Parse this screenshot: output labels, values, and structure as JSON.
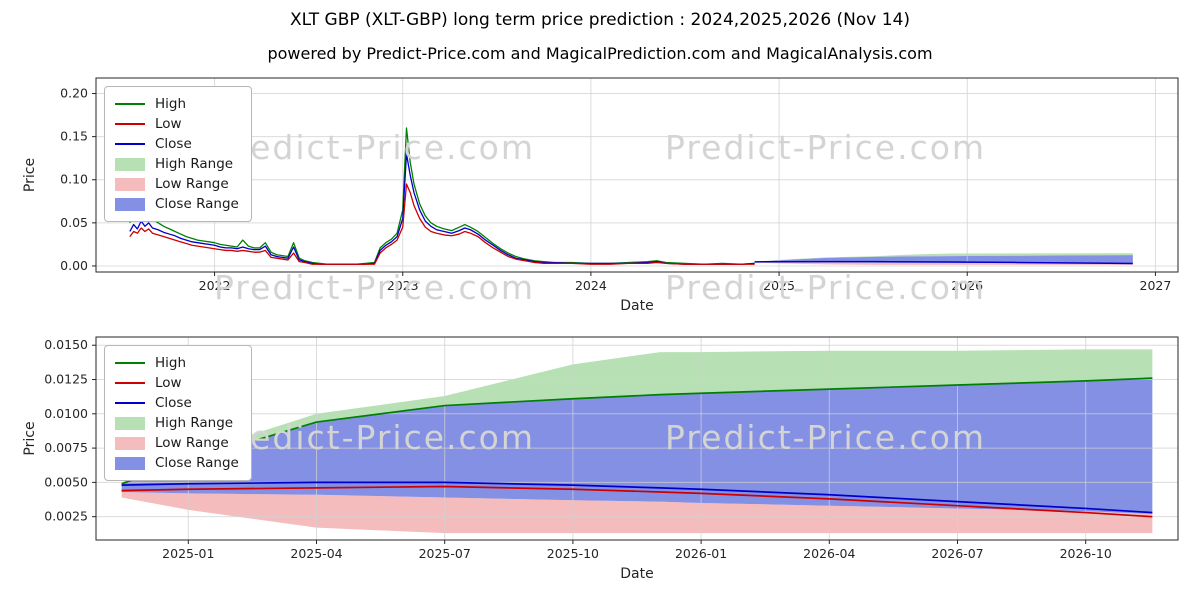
{
  "header": {
    "title": "XLT GBP (XLT-GBP) long term price prediction : 2024,2025,2026 (Nov 14)",
    "subtitle": "powered by Predict-Price.com and MagicalPrediction.com and MagicalAnalysis.com"
  },
  "watermark": {
    "text": "Predict-Price.com"
  },
  "colors": {
    "high": "#008000",
    "low": "#cc0000",
    "close": "#0000cd",
    "high_range": "#b7e0b4",
    "low_range": "#f5bcbe",
    "close_range": "#8390e4",
    "grid": "#d0d0d0",
    "spine": "#262626",
    "text": "#262626"
  },
  "legend": {
    "items": [
      {
        "label": "High",
        "swatch": "line",
        "color": "high"
      },
      {
        "label": "Low",
        "swatch": "line",
        "color": "low"
      },
      {
        "label": "Close",
        "swatch": "line",
        "color": "close"
      },
      {
        "label": "High Range",
        "swatch": "patch",
        "color": "high_range"
      },
      {
        "label": "Low Range",
        "swatch": "patch",
        "color": "low_range"
      },
      {
        "label": "Close Range",
        "swatch": "patch",
        "color": "close_range"
      }
    ]
  },
  "chart_data": [
    {
      "type": "line",
      "name": "price-history",
      "xlabel": "Date",
      "ylabel": "Price",
      "grid": true,
      "legend_position": "upper left",
      "xlim": [
        2021.37,
        2027.12
      ],
      "ylim": [
        -0.007,
        0.218
      ],
      "x_ticks": [
        {
          "v": 2022,
          "label": "2022"
        },
        {
          "v": 2023,
          "label": "2023"
        },
        {
          "v": 2024,
          "label": "2024"
        },
        {
          "v": 2025,
          "label": "2025"
        },
        {
          "v": 2026,
          "label": "2026"
        },
        {
          "v": 2027,
          "label": "2027"
        }
      ],
      "y_ticks": [
        {
          "v": 0.0,
          "label": "0.00"
        },
        {
          "v": 0.05,
          "label": "0.05"
        },
        {
          "v": 0.1,
          "label": "0.10"
        },
        {
          "v": 0.15,
          "label": "0.15"
        },
        {
          "v": 0.2,
          "label": "0.20"
        }
      ],
      "x": [
        2021.55,
        2021.57,
        2021.59,
        2021.61,
        2021.63,
        2021.65,
        2021.67,
        2021.7,
        2021.73,
        2021.76,
        2021.79,
        2021.82,
        2021.85,
        2021.88,
        2021.91,
        2021.94,
        2021.97,
        2022.0,
        2022.03,
        2022.06,
        2022.09,
        2022.12,
        2022.15,
        2022.18,
        2022.21,
        2022.24,
        2022.27,
        2022.3,
        2022.33,
        2022.36,
        2022.39,
        2022.42,
        2022.45,
        2022.48,
        2022.52,
        2022.56,
        2022.6,
        2022.65,
        2022.7,
        2022.75,
        2022.8,
        2022.85,
        2022.88,
        2022.91,
        2022.94,
        2022.97,
        2023.0,
        2023.02,
        2023.04,
        2023.06,
        2023.09,
        2023.12,
        2023.15,
        2023.18,
        2023.22,
        2023.26,
        2023.3,
        2023.33,
        2023.36,
        2023.4,
        2023.44,
        2023.48,
        2023.52,
        2023.56,
        2023.6,
        2023.65,
        2023.7,
        2023.75,
        2023.8,
        2023.9,
        2024.0,
        2024.1,
        2024.2,
        2024.3,
        2024.35,
        2024.4,
        2024.5,
        2024.6,
        2024.7,
        2024.8,
        2024.87
      ],
      "high": [
        0.05,
        0.072,
        0.055,
        0.075,
        0.058,
        0.074,
        0.054,
        0.05,
        0.046,
        0.043,
        0.04,
        0.037,
        0.034,
        0.032,
        0.03,
        0.029,
        0.028,
        0.027,
        0.025,
        0.024,
        0.023,
        0.022,
        0.03,
        0.023,
        0.021,
        0.021,
        0.027,
        0.016,
        0.013,
        0.012,
        0.011,
        0.027,
        0.009,
        0.006,
        0.004,
        0.003,
        0.002,
        0.002,
        0.002,
        0.002,
        0.003,
        0.004,
        0.021,
        0.027,
        0.031,
        0.038,
        0.065,
        0.16,
        0.12,
        0.095,
        0.072,
        0.058,
        0.05,
        0.046,
        0.043,
        0.041,
        0.045,
        0.048,
        0.045,
        0.04,
        0.033,
        0.026,
        0.02,
        0.015,
        0.011,
        0.008,
        0.006,
        0.005,
        0.004,
        0.004,
        0.003,
        0.003,
        0.004,
        0.005,
        0.006,
        0.004,
        0.003,
        0.002,
        0.003,
        0.002,
        0.003
      ],
      "close": [
        0.04,
        0.048,
        0.043,
        0.052,
        0.046,
        0.05,
        0.044,
        0.042,
        0.039,
        0.037,
        0.035,
        0.032,
        0.03,
        0.028,
        0.027,
        0.026,
        0.025,
        0.024,
        0.022,
        0.021,
        0.021,
        0.02,
        0.022,
        0.02,
        0.019,
        0.019,
        0.023,
        0.013,
        0.011,
        0.01,
        0.009,
        0.022,
        0.007,
        0.005,
        0.003,
        0.002,
        0.002,
        0.002,
        0.002,
        0.002,
        0.002,
        0.003,
        0.018,
        0.024,
        0.028,
        0.034,
        0.055,
        0.13,
        0.105,
        0.085,
        0.065,
        0.052,
        0.046,
        0.042,
        0.04,
        0.038,
        0.041,
        0.044,
        0.042,
        0.037,
        0.03,
        0.024,
        0.018,
        0.013,
        0.009,
        0.007,
        0.005,
        0.004,
        0.004,
        0.003,
        0.003,
        0.003,
        0.003,
        0.004,
        0.005,
        0.003,
        0.002,
        0.002,
        0.002,
        0.002,
        0.003
      ],
      "low": [
        0.034,
        0.04,
        0.038,
        0.044,
        0.04,
        0.043,
        0.038,
        0.036,
        0.034,
        0.032,
        0.03,
        0.028,
        0.026,
        0.024,
        0.023,
        0.022,
        0.021,
        0.02,
        0.019,
        0.018,
        0.018,
        0.017,
        0.018,
        0.017,
        0.016,
        0.016,
        0.018,
        0.01,
        0.009,
        0.008,
        0.007,
        0.015,
        0.005,
        0.004,
        0.002,
        0.002,
        0.002,
        0.002,
        0.002,
        0.002,
        0.002,
        0.002,
        0.015,
        0.021,
        0.025,
        0.03,
        0.045,
        0.095,
        0.085,
        0.07,
        0.055,
        0.045,
        0.04,
        0.038,
        0.036,
        0.035,
        0.037,
        0.04,
        0.038,
        0.034,
        0.027,
        0.021,
        0.016,
        0.011,
        0.008,
        0.006,
        0.004,
        0.003,
        0.003,
        0.003,
        0.002,
        0.002,
        0.003,
        0.003,
        0.004,
        0.003,
        0.002,
        0.002,
        0.002,
        0.002,
        0.002
      ],
      "xf": [
        2024.87,
        2025.0,
        2025.25,
        2025.5,
        2025.75,
        2025.92,
        2026.0,
        2026.25,
        2026.5,
        2026.75,
        2026.88
      ],
      "f_high_max": [
        0.005,
        0.007,
        0.01,
        0.0113,
        0.0136,
        0.0145,
        0.0145,
        0.0146,
        0.0146,
        0.0147,
        0.0147
      ],
      "f_close_max": [
        0.0049,
        0.0066,
        0.0094,
        0.0106,
        0.0111,
        0.0114,
        0.0115,
        0.0118,
        0.0121,
        0.0124,
        0.0126
      ],
      "f_close": [
        0.0048,
        0.0049,
        0.005,
        0.005,
        0.0048,
        0.0046,
        0.0045,
        0.0041,
        0.0036,
        0.0031,
        0.0028
      ],
      "f_close_min": [
        0.0043,
        0.0042,
        0.0041,
        0.0039,
        0.0037,
        0.0036,
        0.0035,
        0.0033,
        0.0031,
        0.0029,
        0.0027
      ],
      "f_low_min": [
        0.0039,
        0.003,
        0.0017,
        0.0013,
        0.0013,
        0.0013,
        0.0013,
        0.0013,
        0.0013,
        0.0013,
        0.0013
      ],
      "bands": [
        {
          "name": "high-range-band",
          "color": "high_range",
          "x": "xf",
          "upper": "f_high_max",
          "lower": "f_close_max"
        },
        {
          "name": "low-range-band",
          "color": "low_range",
          "x": "xf",
          "upper": "f_close_min",
          "lower": "f_low_min"
        },
        {
          "name": "close-range-band",
          "color": "close_range",
          "x": "xf",
          "upper": "f_close_max",
          "lower": "f_close_min"
        }
      ],
      "series": [
        {
          "name": "high-line",
          "color": "high",
          "y": "high",
          "width": 1.3
        },
        {
          "name": "close-line",
          "color": "close",
          "y": "close",
          "width": 1.3
        },
        {
          "name": "low-line",
          "color": "low",
          "y": "low",
          "width": 1.3
        },
        {
          "name": "forecast-close-line",
          "color": "close",
          "x": "xf",
          "y": "f_close",
          "width": 1.5
        }
      ]
    },
    {
      "type": "line",
      "name": "forecast-detail",
      "xlabel": "Date",
      "ylabel": "Price",
      "grid": true,
      "legend_position": "upper left",
      "xlim": [
        2024.82,
        2026.93
      ],
      "ylim": [
        0.0008,
        0.0156
      ],
      "x_ticks": [
        {
          "v": 2025.0,
          "label": "2025-01"
        },
        {
          "v": 2025.25,
          "label": "2025-04"
        },
        {
          "v": 2025.5,
          "label": "2025-07"
        },
        {
          "v": 2025.75,
          "label": "2025-10"
        },
        {
          "v": 2026.0,
          "label": "2026-01"
        },
        {
          "v": 2026.25,
          "label": "2026-04"
        },
        {
          "v": 2026.5,
          "label": "2026-07"
        },
        {
          "v": 2026.75,
          "label": "2026-10"
        }
      ],
      "y_ticks": [
        {
          "v": 0.0025,
          "label": "0.0025"
        },
        {
          "v": 0.005,
          "label": "0.0050"
        },
        {
          "v": 0.0075,
          "label": "0.0075"
        },
        {
          "v": 0.01,
          "label": "0.0100"
        },
        {
          "v": 0.0125,
          "label": "0.0125"
        },
        {
          "v": 0.015,
          "label": "0.0150"
        }
      ],
      "x": [
        2024.87,
        2025.0,
        2025.25,
        2025.5,
        2025.75,
        2025.92,
        2026.0,
        2026.25,
        2026.5,
        2026.75,
        2026.88
      ],
      "high_max": [
        0.005,
        0.007,
        0.01,
        0.0113,
        0.0136,
        0.0145,
        0.0145,
        0.0146,
        0.0146,
        0.0147,
        0.0147
      ],
      "close_max": [
        0.0049,
        0.0066,
        0.0094,
        0.0106,
        0.0111,
        0.0114,
        0.0115,
        0.0118,
        0.0121,
        0.0124,
        0.0126
      ],
      "close": [
        0.0048,
        0.0049,
        0.005,
        0.005,
        0.0048,
        0.0046,
        0.0045,
        0.0041,
        0.0036,
        0.0031,
        0.0028
      ],
      "low": [
        0.0044,
        0.0045,
        0.0046,
        0.0047,
        0.0045,
        0.0043,
        0.0042,
        0.0038,
        0.0033,
        0.0028,
        0.0025
      ],
      "close_min": [
        0.0043,
        0.0042,
        0.0041,
        0.0039,
        0.0037,
        0.0036,
        0.0035,
        0.0033,
        0.0031,
        0.0029,
        0.0027
      ],
      "low_min": [
        0.0039,
        0.003,
        0.0017,
        0.0013,
        0.0013,
        0.0013,
        0.0013,
        0.0013,
        0.0013,
        0.0013,
        0.0013
      ],
      "bands": [
        {
          "name": "high-range-band",
          "color": "high_range",
          "upper": "high_max",
          "lower": "close_max"
        },
        {
          "name": "low-range-band",
          "color": "low_range",
          "upper": "close_min",
          "lower": "low_min"
        },
        {
          "name": "close-range-band",
          "color": "close_range",
          "upper": "close_max",
          "lower": "close_min"
        }
      ],
      "series": [
        {
          "name": "high-line",
          "color": "high",
          "y": "close_max",
          "width": 1.7
        },
        {
          "name": "low-line",
          "color": "low",
          "y": "low",
          "width": 1.7
        },
        {
          "name": "close-line",
          "color": "close",
          "y": "close",
          "width": 1.7
        }
      ]
    }
  ]
}
